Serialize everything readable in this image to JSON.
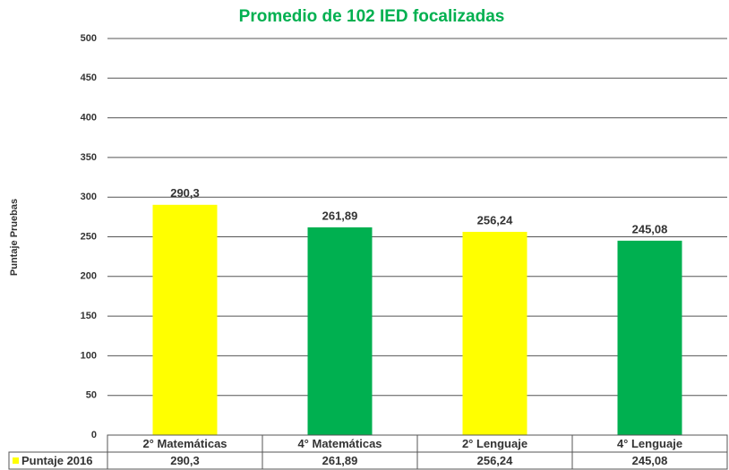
{
  "chart_data": {
    "type": "bar",
    "title": "Promedio de 102 IED focalizadas",
    "y_label": "Puntaje Pruebas",
    "categories": [
      "2° Matemáticas",
      "4° Matemáticas",
      "2° Lenguaje",
      "4° Lenguaje"
    ],
    "series": [
      {
        "name": "Puntaje 2016",
        "color": "#ffff00",
        "colors": [
          "#ffff00",
          "#00b050",
          "#ffff00",
          "#00b050"
        ],
        "values": [
          290.3,
          261.89,
          256.24,
          245.08
        ],
        "value_labels": [
          "290,3",
          "261,89",
          "256,24",
          "245,08"
        ]
      }
    ],
    "ylim": [
      0,
      500
    ],
    "yticks": [
      0,
      50,
      100,
      150,
      200,
      250,
      300,
      350,
      400,
      450,
      500
    ],
    "grid": true,
    "data_table": true
  }
}
